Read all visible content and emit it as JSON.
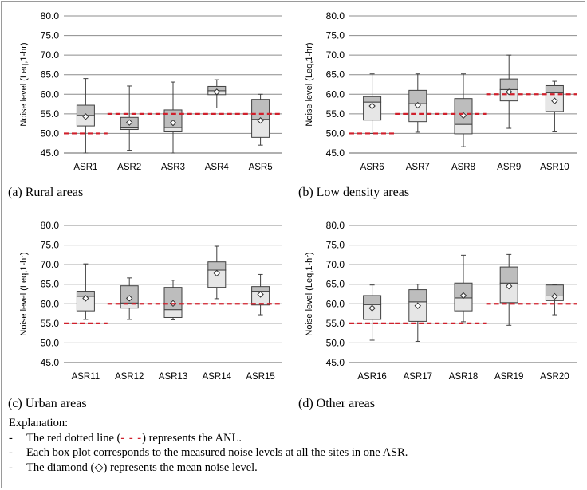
{
  "chart_data": [
    {
      "type": "boxplot",
      "caption": "(a) Rural areas",
      "ylabel": "Noise level (Leq,1-hr)",
      "ylim": [
        45.0,
        80.0
      ],
      "yticks": [
        "45.0",
        "50.0",
        "55.0",
        "60.0",
        "65.0",
        "70.0",
        "75.0",
        "80.0"
      ],
      "categories": [
        "ASR1",
        "ASR2",
        "ASR3",
        "ASR4",
        "ASR5"
      ],
      "boxes": [
        {
          "min": 45.0,
          "q1": 51.9,
          "median": 54.6,
          "q3": 57.2,
          "max": 64.0,
          "mean": 54.3
        },
        {
          "min": 45.7,
          "q1": 51.0,
          "median": 51.4,
          "q3": 54.1,
          "max": 62.1,
          "mean": 52.8
        },
        {
          "min": 45.0,
          "q1": 50.4,
          "median": 51.5,
          "q3": 56.0,
          "max": 63.1,
          "mean": 52.7
        },
        {
          "min": 56.5,
          "q1": 59.9,
          "median": 60.9,
          "q3": 62.0,
          "max": 63.7,
          "mean": 60.6
        },
        {
          "min": 47.0,
          "q1": 49.0,
          "median": 53.6,
          "q3": 58.7,
          "max": 60.0,
          "mean": 53.3
        }
      ],
      "anl": [
        {
          "from": 0,
          "to": 1,
          "value": 50.0
        },
        {
          "from": 1,
          "to": 5,
          "value": 55.0
        }
      ]
    },
    {
      "type": "boxplot",
      "caption": "(b) Low density areas",
      "ylabel": "Noise level (Leq,1-hr)",
      "ylim": [
        45.0,
        80.0
      ],
      "yticks": [
        "45.0",
        "50.0",
        "55.0",
        "60.0",
        "65.0",
        "70.0",
        "75.0",
        "80.0"
      ],
      "categories": [
        "ASR6",
        "ASR7",
        "ASR8",
        "ASR9",
        "ASR10"
      ],
      "boxes": [
        {
          "min": 50.0,
          "q1": 53.4,
          "median": 58.0,
          "q3": 59.4,
          "max": 65.2,
          "mean": 57.0
        },
        {
          "min": 50.3,
          "q1": 53.0,
          "median": 57.6,
          "q3": 61.0,
          "max": 65.2,
          "mean": 57.2
        },
        {
          "min": 46.6,
          "q1": 49.9,
          "median": 52.3,
          "q3": 58.9,
          "max": 65.2,
          "mean": 54.6
        },
        {
          "min": 51.3,
          "q1": 58.3,
          "median": 61.2,
          "q3": 63.9,
          "max": 70.0,
          "mean": 60.6
        },
        {
          "min": 50.4,
          "q1": 55.6,
          "median": 60.4,
          "q3": 62.2,
          "max": 63.3,
          "mean": 58.3
        }
      ],
      "anl": [
        {
          "from": 0,
          "to": 1,
          "value": 50.0
        },
        {
          "from": 1,
          "to": 3,
          "value": 55.0
        },
        {
          "from": 3,
          "to": 5,
          "value": 60.0
        }
      ]
    },
    {
      "type": "boxplot",
      "caption": "(c) Urban areas",
      "ylabel": "Noise level (Leq,1-hr)",
      "ylim": [
        45.0,
        80.0
      ],
      "yticks": [
        "45.0",
        "50.0",
        "55.0",
        "60.0",
        "65.0",
        "70.0",
        "75.0",
        "80.0"
      ],
      "categories": [
        "ASR11",
        "ASR12",
        "ASR13",
        "ASR14",
        "ASR15"
      ],
      "boxes": [
        {
          "min": 56.0,
          "q1": 58.2,
          "median": 61.9,
          "q3": 63.2,
          "max": 70.2,
          "mean": 61.4
        },
        {
          "min": 56.0,
          "q1": 58.9,
          "median": 60.2,
          "q3": 64.6,
          "max": 66.6,
          "mean": 61.4
        },
        {
          "min": 55.9,
          "q1": 56.5,
          "median": 58.5,
          "q3": 64.2,
          "max": 66.0,
          "mean": 60.1
        },
        {
          "min": 61.3,
          "q1": 64.2,
          "median": 68.6,
          "q3": 70.7,
          "max": 74.7,
          "mean": 67.8
        },
        {
          "min": 57.2,
          "q1": 59.7,
          "median": 63.2,
          "q3": 64.4,
          "max": 67.5,
          "mean": 62.4
        }
      ],
      "anl": [
        {
          "from": 0,
          "to": 1,
          "value": 55.0
        },
        {
          "from": 1,
          "to": 5,
          "value": 60.0
        }
      ]
    },
    {
      "type": "boxplot",
      "caption": "(d) Other areas",
      "ylabel": "Noise level (Leq,1-hr)",
      "ylim": [
        45.0,
        80.0
      ],
      "yticks": [
        "45.0",
        "50.0",
        "55.0",
        "60.0",
        "65.0",
        "70.0",
        "75.0",
        "80.0"
      ],
      "categories": [
        "ASR16",
        "ASR17",
        "ASR18",
        "ASR19",
        "ASR20"
      ],
      "boxes": [
        {
          "min": 50.7,
          "q1": 56.0,
          "median": 59.8,
          "q3": 62.1,
          "max": 64.8,
          "mean": 58.9
        },
        {
          "min": 50.4,
          "q1": 55.5,
          "median": 60.5,
          "q3": 63.6,
          "max": 65.0,
          "mean": 59.5
        },
        {
          "min": 55.4,
          "q1": 58.2,
          "median": 61.5,
          "q3": 65.3,
          "max": 72.4,
          "mean": 62.1
        },
        {
          "min": 54.5,
          "q1": 60.3,
          "median": 65.3,
          "q3": 69.4,
          "max": 72.6,
          "mean": 64.5
        },
        {
          "min": 57.2,
          "q1": 60.8,
          "median": 62.0,
          "q3": 64.8,
          "max": 64.9,
          "mean": 61.9
        }
      ],
      "anl": [
        {
          "from": 0,
          "to": 1,
          "value": 55.0
        },
        {
          "from": 1,
          "to": 3,
          "value": 55.0
        },
        {
          "from": 3,
          "to": 5,
          "value": 60.0
        }
      ]
    }
  ],
  "colors": {
    "anl_line": "#d0202c",
    "box_lower": "#e6e6e6",
    "box_upper": "#bdbdbd",
    "grid": "#8c8c8c",
    "outline": "#404040"
  },
  "explanation": {
    "heading": "Explanation:",
    "bullet": "-",
    "line1_pre": "The red dotted line (",
    "line1_symbol": "- - -",
    "line1_post": ") represents the ANL.",
    "line2": "Each box plot corresponds to the measured noise levels at all the sites in one ASR.",
    "line3_pre": "The diamond (",
    "line3_symbol": "◇",
    "line3_post": ") represents the mean noise level."
  }
}
